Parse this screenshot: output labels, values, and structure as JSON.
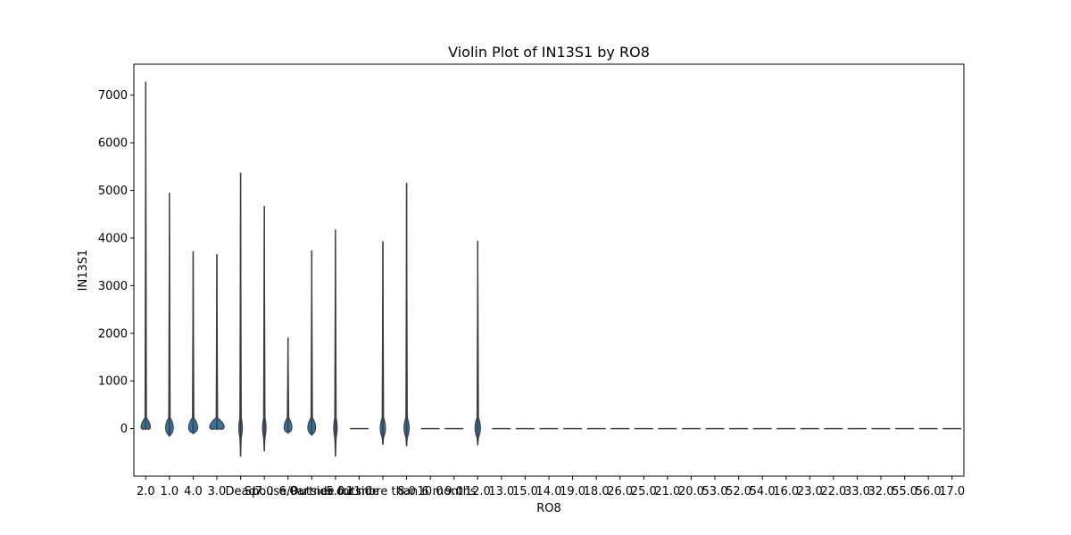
{
  "chart_data": {
    "type": "violin",
    "title": "Violin Plot of IN13S1 by RO8",
    "xlabel": "RO8",
    "ylabel": "IN13S1",
    "ylim": [
      -1000,
      7650
    ],
    "yticks": [
      0,
      1000,
      2000,
      3000,
      4000,
      5000,
      6000,
      7000
    ],
    "grid": false,
    "legend": "none",
    "colors": {
      "violin_fill": "#3274a1",
      "violin_edge": "#3d3d3d",
      "axes": "#000000"
    },
    "categories": [
      "2.0",
      "1.0",
      "4.0",
      "3.0",
      "Dead",
      "7.0",
      "6.0",
      "Spouse/Partner outside",
      "5.0",
      "11.0",
      "Outside for more than 6 months",
      "8.0",
      "10.0",
      "9.0",
      "12.0",
      "13.0",
      "15.0",
      "14.0",
      "19.0",
      "18.0",
      "26.0",
      "25.0",
      "21.0",
      "20.0",
      "53.0",
      "52.0",
      "54.0",
      "16.0",
      "23.0",
      "22.0",
      "33.0",
      "32.0",
      "55.0",
      "56.0",
      "17.0"
    ],
    "violins": [
      {
        "category": "2.0",
        "min": -20,
        "max": 7280,
        "center": 0,
        "halfwidth": 6.6
      },
      {
        "category": "1.0",
        "min": -160,
        "max": 4950,
        "center": 0,
        "halfwidth": 5.5
      },
      {
        "category": "4.0",
        "min": -110,
        "max": 3720,
        "center": 0,
        "halfwidth": 6.4
      },
      {
        "category": "3.0",
        "min": -20,
        "max": 3660,
        "center": 0,
        "halfwidth": 10.5
      },
      {
        "category": "Dead",
        "min": -590,
        "max": 5370,
        "center": 0,
        "halfwidth": 2.4
      },
      {
        "category": "7.0",
        "min": -480,
        "max": 4670,
        "center": 0,
        "halfwidth": 2.4
      },
      {
        "category": "6.0",
        "min": -100,
        "max": 1910,
        "center": 0,
        "halfwidth": 5.5
      },
      {
        "category": "Spouse/Partner outside",
        "min": -140,
        "max": 3740,
        "center": 0,
        "halfwidth": 5.5
      },
      {
        "category": "5.0",
        "min": -590,
        "max": 4180,
        "center": 0,
        "halfwidth": 2.4
      },
      {
        "category": "11.0",
        "min": 0,
        "max": 0,
        "center": 0,
        "halfwidth": 10.5
      },
      {
        "category": "Outside for more than 6 months",
        "min": -340,
        "max": 3930,
        "center": 0,
        "halfwidth": 3.6
      },
      {
        "category": "8.0",
        "min": -370,
        "max": 5160,
        "center": 0,
        "halfwidth": 3.6
      },
      {
        "category": "10.0",
        "min": 0,
        "max": 0,
        "center": 0,
        "halfwidth": 10.5
      },
      {
        "category": "9.0",
        "min": 0,
        "max": 0,
        "center": 0,
        "halfwidth": 10.5
      },
      {
        "category": "12.0",
        "min": -350,
        "max": 3940,
        "center": 0,
        "halfwidth": 3.8
      },
      {
        "category": "13.0",
        "min": 0,
        "max": 0,
        "center": 0,
        "halfwidth": 10.5
      },
      {
        "category": "15.0",
        "min": 0,
        "max": 0,
        "center": 0,
        "halfwidth": 10.5
      },
      {
        "category": "14.0",
        "min": 0,
        "max": 0,
        "center": 0,
        "halfwidth": 10.5
      },
      {
        "category": "19.0",
        "min": 0,
        "max": 0,
        "center": 0,
        "halfwidth": 10.5
      },
      {
        "category": "18.0",
        "min": 0,
        "max": 0,
        "center": 0,
        "halfwidth": 10.5
      },
      {
        "category": "26.0",
        "min": 0,
        "max": 0,
        "center": 0,
        "halfwidth": 10.5
      },
      {
        "category": "25.0",
        "min": 0,
        "max": 0,
        "center": 0,
        "halfwidth": 10.5
      },
      {
        "category": "21.0",
        "min": 0,
        "max": 0,
        "center": 0,
        "halfwidth": 10.5
      },
      {
        "category": "20.0",
        "min": 0,
        "max": 0,
        "center": 0,
        "halfwidth": 10.5
      },
      {
        "category": "53.0",
        "min": 0,
        "max": 0,
        "center": 0,
        "halfwidth": 10.5
      },
      {
        "category": "52.0",
        "min": 0,
        "max": 0,
        "center": 0,
        "halfwidth": 10.5
      },
      {
        "category": "54.0",
        "min": 0,
        "max": 0,
        "center": 0,
        "halfwidth": 10.5
      },
      {
        "category": "16.0",
        "min": 0,
        "max": 0,
        "center": 0,
        "halfwidth": 10.5
      },
      {
        "category": "23.0",
        "min": 0,
        "max": 0,
        "center": 0,
        "halfwidth": 10.5
      },
      {
        "category": "22.0",
        "min": 0,
        "max": 0,
        "center": 0,
        "halfwidth": 10.5
      },
      {
        "category": "33.0",
        "min": 0,
        "max": 0,
        "center": 0,
        "halfwidth": 10.5
      },
      {
        "category": "32.0",
        "min": 0,
        "max": 0,
        "center": 0,
        "halfwidth": 10.5
      },
      {
        "category": "55.0",
        "min": 0,
        "max": 0,
        "center": 0,
        "halfwidth": 10.5
      },
      {
        "category": "56.0",
        "min": 0,
        "max": 0,
        "center": 0,
        "halfwidth": 10.5
      },
      {
        "category": "17.0",
        "min": 0,
        "max": 0,
        "center": 0,
        "halfwidth": 10.5
      }
    ]
  }
}
